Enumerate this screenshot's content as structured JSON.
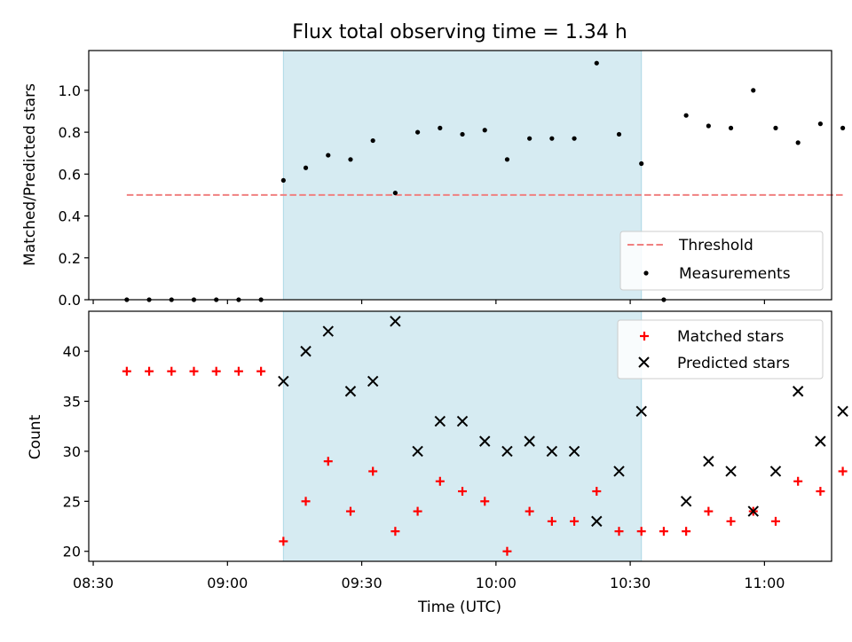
{
  "chart_data": [
    {
      "type": "scatter",
      "title": "Flux total observing time = 1.34 h",
      "xlabel": "",
      "ylabel": "Matched/Predicted stars",
      "x_time_range": [
        "08:29",
        "11:15"
      ],
      "ylim": [
        0,
        1.19
      ],
      "yticks": [
        0.0,
        0.2,
        0.4,
        0.6,
        0.8,
        1.0
      ],
      "ytick_labels": [
        "0.0",
        "0.2",
        "0.4",
        "0.6",
        "0.8",
        "1.0"
      ],
      "shaded_interval": [
        "09:12.5",
        "10:32.5"
      ],
      "shade_color": "#add8e6",
      "legend_position": "lower-right",
      "threshold": {
        "name": "Threshold",
        "value": 0.5,
        "x_range": [
          "08:37.5",
          "11:17.5"
        ],
        "color": "#f08080",
        "style": "dashed"
      },
      "series": [
        {
          "name": "Measurements",
          "marker": "dot",
          "color": "#000000",
          "x": [
            "08:37.5",
            "08:42.5",
            "08:47.5",
            "08:52.5",
            "08:57.5",
            "09:02.5",
            "09:07.5",
            "09:12.5",
            "09:17.5",
            "09:22.5",
            "09:27.5",
            "09:32.5",
            "09:37.5",
            "09:42.5",
            "09:47.5",
            "09:52.5",
            "09:57.5",
            "10:02.5",
            "10:07.5",
            "10:12.5",
            "10:17.5",
            "10:22.5",
            "10:27.5",
            "10:32.5",
            "10:37.5",
            "10:42.5",
            "10:47.5",
            "10:52.5",
            "10:57.5",
            "11:02.5",
            "11:07.5",
            "11:12.5",
            "11:17.5"
          ],
          "y": [
            0,
            0,
            0,
            0,
            0,
            0,
            0,
            0.57,
            0.63,
            0.69,
            0.67,
            0.76,
            0.51,
            0.8,
            0.82,
            0.79,
            0.81,
            0.67,
            0.77,
            0.77,
            0.77,
            1.13,
            0.79,
            0.65,
            0,
            0.88,
            0.83,
            0.82,
            1.0,
            0.82,
            0.75,
            0.84,
            0.82
          ]
        }
      ]
    },
    {
      "type": "scatter",
      "title": "",
      "xlabel": "Time (UTC)",
      "ylabel": "Count",
      "x_time_range": [
        "08:29",
        "11:15"
      ],
      "xticks": [
        "08:30",
        "09:00",
        "09:30",
        "10:00",
        "10:30",
        "11:00"
      ],
      "ylim": [
        19,
        44
      ],
      "yticks": [
        20,
        25,
        30,
        35,
        40
      ],
      "ytick_labels": [
        "20",
        "25",
        "30",
        "35",
        "40"
      ],
      "shaded_interval": [
        "09:12.5",
        "10:32.5"
      ],
      "shade_color": "#add8e6",
      "legend_position": "top-right",
      "series": [
        {
          "name": "Matched stars",
          "marker": "plus",
          "color": "#ff0000",
          "x": [
            "08:37.5",
            "08:42.5",
            "08:47.5",
            "08:52.5",
            "08:57.5",
            "09:02.5",
            "09:07.5",
            "09:12.5",
            "09:17.5",
            "09:22.5",
            "09:27.5",
            "09:32.5",
            "09:37.5",
            "09:42.5",
            "09:47.5",
            "09:52.5",
            "09:57.5",
            "10:02.5",
            "10:07.5",
            "10:12.5",
            "10:17.5",
            "10:22.5",
            "10:27.5",
            "10:32.5",
            "10:37.5",
            "10:42.5",
            "10:47.5",
            "10:52.5",
            "10:57.5",
            "11:02.5",
            "11:07.5",
            "11:12.5",
            "11:17.5"
          ],
          "y": [
            38,
            38,
            38,
            38,
            38,
            38,
            38,
            21,
            25,
            29,
            24,
            28,
            22,
            24,
            27,
            26,
            25,
            20,
            24,
            23,
            23,
            26,
            22,
            22,
            22,
            22,
            24,
            23,
            24,
            23,
            27,
            26,
            28
          ]
        },
        {
          "name": "Predicted stars",
          "marker": "x",
          "color": "#000000",
          "x": [
            "09:12.5",
            "09:17.5",
            "09:22.5",
            "09:27.5",
            "09:32.5",
            "09:37.5",
            "09:42.5",
            "09:47.5",
            "09:52.5",
            "09:57.5",
            "10:02.5",
            "10:07.5",
            "10:12.5",
            "10:17.5",
            "10:22.5",
            "10:27.5",
            "10:32.5",
            "10:42.5",
            "10:47.5",
            "10:52.5",
            "10:57.5",
            "11:02.5",
            "11:07.5",
            "11:12.5",
            "11:17.5"
          ],
          "y": [
            37,
            40,
            42,
            36,
            37,
            43,
            30,
            33,
            33,
            31,
            30,
            31,
            30,
            30,
            23,
            28,
            34,
            25,
            29,
            28,
            24,
            28,
            36,
            31,
            34
          ]
        }
      ]
    }
  ]
}
